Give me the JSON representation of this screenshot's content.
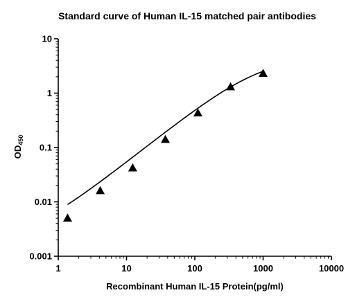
{
  "chart_data": {
    "type": "scatter",
    "title": "Standard curve of Human IL-15 matched pair antibodies",
    "xlabel": "Recombinant Human IL-15 Protein(pg/ml)",
    "ylabel": {
      "main": "OD",
      "subscript": "450"
    },
    "x_scale": "log",
    "y_scale": "log",
    "xlim": [
      1,
      10000
    ],
    "ylim": [
      0.001,
      10
    ],
    "x_ticks": [
      {
        "value": 1,
        "label": "1"
      },
      {
        "value": 10,
        "label": "10"
      },
      {
        "value": 100,
        "label": "100"
      },
      {
        "value": 1000,
        "label": "1000"
      },
      {
        "value": 10000,
        "label": "10000"
      }
    ],
    "y_ticks": [
      {
        "value": 0.001,
        "label": "0.001"
      },
      {
        "value": 0.01,
        "label": "0.01"
      },
      {
        "value": 0.1,
        "label": "0.1"
      },
      {
        "value": 1,
        "label": "1"
      },
      {
        "value": 10,
        "label": "10"
      }
    ],
    "grid": false,
    "legend": "none",
    "marker": "triangle",
    "color": "#000000",
    "series": [
      {
        "points": [
          {
            "x": 1.37,
            "y": 0.005
          },
          {
            "x": 4.12,
            "y": 0.016
          },
          {
            "x": 12.3,
            "y": 0.042
          },
          {
            "x": 37.0,
            "y": 0.14
          },
          {
            "x": 111.0,
            "y": 0.43
          },
          {
            "x": 333.0,
            "y": 1.3
          },
          {
            "x": 1000.0,
            "y": 2.3
          }
        ]
      }
    ],
    "fit_curve": {
      "model": "4PL",
      "bottom": 0.00164,
      "top": 4.8,
      "ec50": 900,
      "hill": 1.0,
      "x_range": [
        1.37,
        1000
      ]
    }
  }
}
